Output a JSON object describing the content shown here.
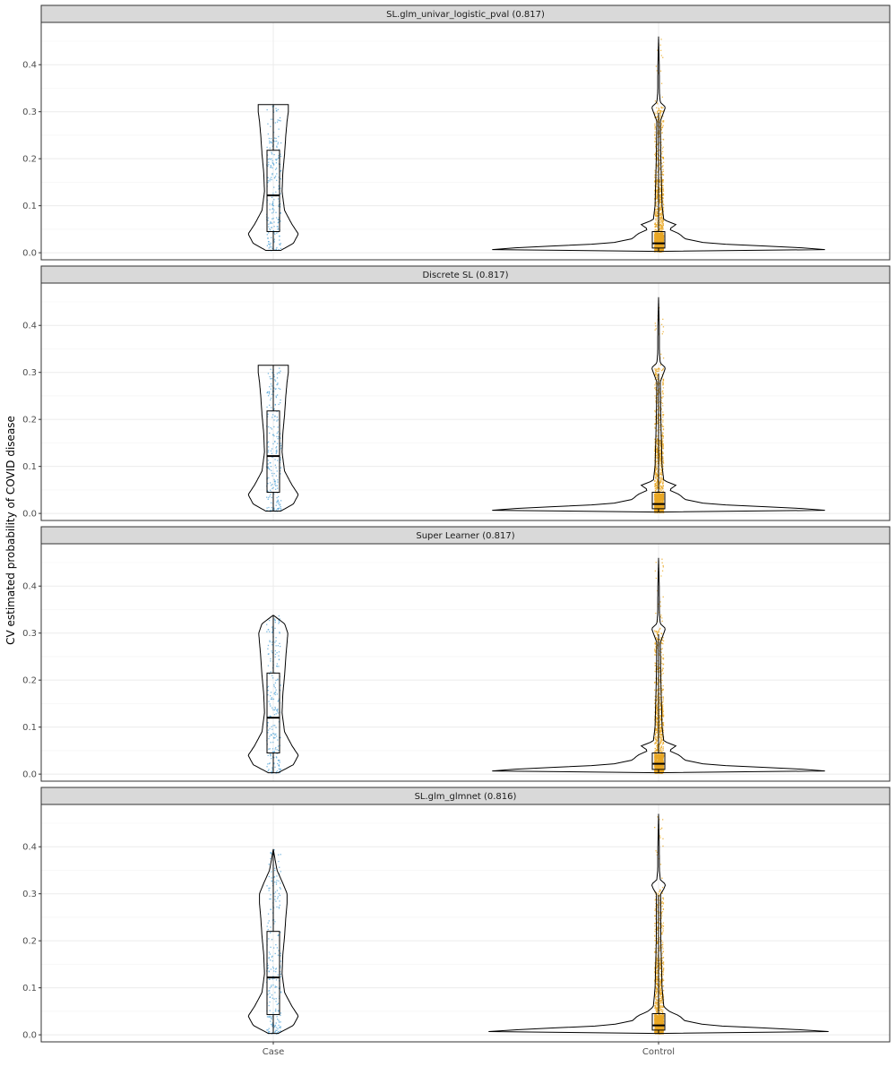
{
  "chart_data": {
    "type": "violin",
    "ylabel": "CV estimated probability of COVID disease",
    "xlabel": "",
    "categories": [
      "Case",
      "Control"
    ],
    "ylim": [
      -0.015,
      0.49
    ],
    "yticks": [
      0.0,
      0.1,
      0.2,
      0.3,
      0.4
    ],
    "ytick_labels": [
      "0.0",
      "0.1",
      "0.2",
      "0.3",
      "0.4"
    ],
    "grid": true,
    "colors": {
      "Case": "#5aa8d8",
      "Control": "#e8a825",
      "strip_fill": "#d9d9d9",
      "outline": "#000000"
    },
    "panels": [
      {
        "title": "SL.glm_univar_logistic_pval (0.817)",
        "groups": [
          {
            "name": "Case",
            "min": 0.005,
            "q1": 0.045,
            "median": 0.122,
            "q3": 0.218,
            "max": 0.315,
            "n_points": 220,
            "density": [
              [
                0.005,
                0.3
              ],
              [
                0.02,
                0.8
              ],
              [
                0.04,
                1.0
              ],
              [
                0.06,
                0.75
              ],
              [
                0.09,
                0.45
              ],
              [
                0.13,
                0.35
              ],
              [
                0.17,
                0.38
              ],
              [
                0.21,
                0.45
              ],
              [
                0.25,
                0.5
              ],
              [
                0.28,
                0.55
              ],
              [
                0.3,
                0.6
              ],
              [
                0.315,
                0.6
              ]
            ]
          },
          {
            "name": "Control",
            "min": 0.003,
            "q1": 0.01,
            "median": 0.02,
            "q3": 0.045,
            "max": 0.46,
            "n_points": 1400,
            "density": [
              [
                0.003,
                0.0
              ],
              [
                0.007,
                1.0
              ],
              [
                0.012,
                0.75
              ],
              [
                0.02,
                0.28
              ],
              [
                0.03,
                0.15
              ],
              [
                0.04,
                0.12
              ],
              [
                0.05,
                0.06
              ],
              [
                0.06,
                0.1
              ],
              [
                0.07,
                0.03
              ],
              [
                0.1,
                0.02
              ],
              [
                0.2,
                0.013
              ],
              [
                0.28,
                0.01
              ],
              [
                0.3,
                0.03
              ],
              [
                0.31,
                0.04
              ],
              [
                0.32,
                0.01
              ],
              [
                0.34,
                0.005
              ],
              [
                0.4,
                0.004
              ],
              [
                0.46,
                0.0
              ]
            ]
          }
        ]
      },
      {
        "title": "Discrete SL (0.817)",
        "groups": [
          {
            "name": "Case",
            "min": 0.005,
            "q1": 0.045,
            "median": 0.122,
            "q3": 0.218,
            "max": 0.315,
            "n_points": 220,
            "density": [
              [
                0.005,
                0.3
              ],
              [
                0.02,
                0.8
              ],
              [
                0.04,
                1.0
              ],
              [
                0.06,
                0.75
              ],
              [
                0.09,
                0.45
              ],
              [
                0.13,
                0.35
              ],
              [
                0.17,
                0.38
              ],
              [
                0.21,
                0.45
              ],
              [
                0.25,
                0.5
              ],
              [
                0.28,
                0.55
              ],
              [
                0.3,
                0.6
              ],
              [
                0.315,
                0.6
              ]
            ]
          },
          {
            "name": "Control",
            "min": 0.003,
            "q1": 0.01,
            "median": 0.02,
            "q3": 0.045,
            "max": 0.46,
            "n_points": 1400,
            "density": [
              [
                0.003,
                0.0
              ],
              [
                0.007,
                1.0
              ],
              [
                0.012,
                0.75
              ],
              [
                0.02,
                0.28
              ],
              [
                0.03,
                0.15
              ],
              [
                0.04,
                0.12
              ],
              [
                0.05,
                0.06
              ],
              [
                0.06,
                0.1
              ],
              [
                0.07,
                0.03
              ],
              [
                0.1,
                0.02
              ],
              [
                0.2,
                0.013
              ],
              [
                0.28,
                0.01
              ],
              [
                0.3,
                0.03
              ],
              [
                0.31,
                0.04
              ],
              [
                0.32,
                0.01
              ],
              [
                0.34,
                0.005
              ],
              [
                0.4,
                0.004
              ],
              [
                0.46,
                0.0
              ]
            ]
          }
        ]
      },
      {
        "title": "Super Learner (0.817)",
        "groups": [
          {
            "name": "Case",
            "min": 0.003,
            "q1": 0.045,
            "median": 0.12,
            "q3": 0.215,
            "max": 0.338,
            "n_points": 220,
            "density": [
              [
                0.003,
                0.2
              ],
              [
                0.02,
                0.8
              ],
              [
                0.04,
                1.0
              ],
              [
                0.06,
                0.75
              ],
              [
                0.09,
                0.45
              ],
              [
                0.13,
                0.35
              ],
              [
                0.17,
                0.38
              ],
              [
                0.21,
                0.45
              ],
              [
                0.25,
                0.5
              ],
              [
                0.28,
                0.55
              ],
              [
                0.3,
                0.58
              ],
              [
                0.32,
                0.45
              ],
              [
                0.338,
                0.0
              ]
            ]
          },
          {
            "name": "Control",
            "min": 0.003,
            "q1": 0.01,
            "median": 0.022,
            "q3": 0.045,
            "max": 0.46,
            "n_points": 1400,
            "density": [
              [
                0.003,
                0.0
              ],
              [
                0.007,
                1.0
              ],
              [
                0.012,
                0.75
              ],
              [
                0.02,
                0.28
              ],
              [
                0.03,
                0.15
              ],
              [
                0.04,
                0.12
              ],
              [
                0.05,
                0.06
              ],
              [
                0.06,
                0.1
              ],
              [
                0.07,
                0.03
              ],
              [
                0.1,
                0.02
              ],
              [
                0.2,
                0.013
              ],
              [
                0.28,
                0.01
              ],
              [
                0.3,
                0.03
              ],
              [
                0.31,
                0.04
              ],
              [
                0.32,
                0.01
              ],
              [
                0.34,
                0.005
              ],
              [
                0.4,
                0.004
              ],
              [
                0.46,
                0.0
              ]
            ]
          }
        ]
      },
      {
        "title": "SL.glm_glmnet (0.816)",
        "groups": [
          {
            "name": "Case",
            "min": 0.003,
            "q1": 0.043,
            "median": 0.122,
            "q3": 0.22,
            "max": 0.395,
            "n_points": 220,
            "density": [
              [
                0.003,
                0.2
              ],
              [
                0.02,
                0.8
              ],
              [
                0.04,
                1.0
              ],
              [
                0.06,
                0.75
              ],
              [
                0.09,
                0.45
              ],
              [
                0.13,
                0.35
              ],
              [
                0.17,
                0.38
              ],
              [
                0.21,
                0.45
              ],
              [
                0.25,
                0.5
              ],
              [
                0.28,
                0.55
              ],
              [
                0.3,
                0.55
              ],
              [
                0.32,
                0.4
              ],
              [
                0.35,
                0.15
              ],
              [
                0.37,
                0.08
              ],
              [
                0.395,
                0.0
              ]
            ]
          },
          {
            "name": "Control",
            "min": 0.003,
            "q1": 0.01,
            "median": 0.02,
            "q3": 0.045,
            "max": 0.47,
            "n_points": 1400,
            "density": [
              [
                0.003,
                0.0
              ],
              [
                0.007,
                1.0
              ],
              [
                0.012,
                0.75
              ],
              [
                0.02,
                0.28
              ],
              [
                0.03,
                0.15
              ],
              [
                0.04,
                0.12
              ],
              [
                0.05,
                0.06
              ],
              [
                0.06,
                0.03
              ],
              [
                0.1,
                0.02
              ],
              [
                0.2,
                0.013
              ],
              [
                0.3,
                0.012
              ],
              [
                0.31,
                0.03
              ],
              [
                0.32,
                0.04
              ],
              [
                0.33,
                0.01
              ],
              [
                0.35,
                0.005
              ],
              [
                0.4,
                0.004
              ],
              [
                0.47,
                0.0
              ]
            ]
          }
        ]
      }
    ]
  }
}
